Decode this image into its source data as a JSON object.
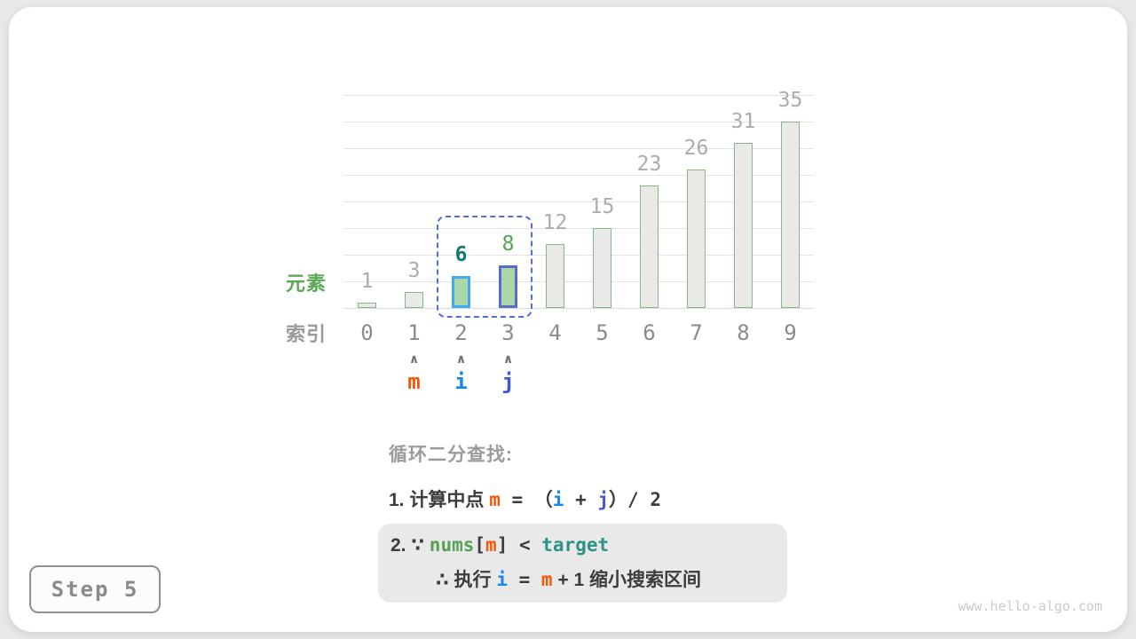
{
  "window": {
    "step_label": "Step 5",
    "watermark": "www.hello-algo.com"
  },
  "chart_data": {
    "type": "bar",
    "categories": [
      "0",
      "1",
      "2",
      "3",
      "4",
      "5",
      "6",
      "7",
      "8",
      "9"
    ],
    "values": [
      1,
      3,
      6,
      8,
      12,
      15,
      23,
      26,
      31,
      35
    ],
    "title": "",
    "xlabel": "索引",
    "ylabel": "元素",
    "ylim": [
      0,
      40
    ],
    "gridline_step": 5,
    "grid": true,
    "bar_fill": "#e9eae7",
    "bar_border": "#86b786",
    "value_label_color": "#acacac",
    "highlighted_bars": [
      {
        "index": 2,
        "border_color": "#3fa9f5",
        "fill": "#a9d7a5",
        "value_label_color": "#117a72",
        "value_label_bold": true
      },
      {
        "index": 3,
        "border_color": "#5a6bc9",
        "fill": "#a9d7a5",
        "value_label_color": "#57a24e",
        "value_label_bold": false
      }
    ],
    "search_window": {
      "start_index": 2,
      "end_index": 3
    },
    "pointers": [
      {
        "label": "m",
        "index": 1,
        "color": "#f1590a"
      },
      {
        "label": "i",
        "index": 2,
        "color": "#1789e8"
      },
      {
        "label": "j",
        "index": 3,
        "color": "#4356d6"
      }
    ],
    "pointer_caret": "∧"
  },
  "annotation": {
    "heading": "循环二分查找:",
    "step1": {
      "pre": "1. 计算中点 ",
      "m": "m",
      "mid1": " = （",
      "i": "i",
      "mid2": " + ",
      "j": "j",
      "post": "）/ 2"
    },
    "step2": {
      "line1": {
        "pre": "2. ∵ ",
        "nums": "nums",
        "open": "[",
        "m": "m",
        "close": "]",
        "cmp": " < ",
        "target": "target"
      },
      "line2": {
        "pre": "∴ 执行 ",
        "i": "i",
        "eq": " = ",
        "m": "m",
        "post": " + 1 缩小搜索区间"
      }
    }
  },
  "colors": {
    "accent_orange": "#f1590a",
    "accent_blue": "#1789e8",
    "accent_indigo": "#4356d6",
    "accent_green": "#56a254",
    "accent_teal": "#2c9387",
    "element_label_green": "#5ca756",
    "index_label_gray": "#9a9a9e",
    "window_dash_blue": "#4e6fe3"
  }
}
